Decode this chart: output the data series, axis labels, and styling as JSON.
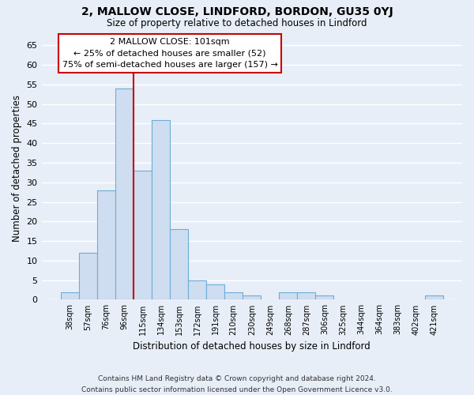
{
  "title": "2, MALLOW CLOSE, LINDFORD, BORDON, GU35 0YJ",
  "subtitle": "Size of property relative to detached houses in Lindford",
  "xlabel": "Distribution of detached houses by size in Lindford",
  "ylabel": "Number of detached properties",
  "bin_labels": [
    "38sqm",
    "57sqm",
    "76sqm",
    "96sqm",
    "115sqm",
    "134sqm",
    "153sqm",
    "172sqm",
    "191sqm",
    "210sqm",
    "230sqm",
    "249sqm",
    "268sqm",
    "287sqm",
    "306sqm",
    "325sqm",
    "344sqm",
    "364sqm",
    "383sqm",
    "402sqm",
    "421sqm"
  ],
  "bar_values": [
    2,
    12,
    28,
    54,
    33,
    46,
    18,
    5,
    4,
    2,
    1,
    0,
    2,
    2,
    1,
    0,
    0,
    0,
    0,
    0,
    1
  ],
  "bar_color": "#cfddf0",
  "bar_edge_color": "#6baed6",
  "vline_pos": 3.5,
  "vline_color": "#cc0000",
  "annotation_title": "2 MALLOW CLOSE: 101sqm",
  "annotation_line1": "← 25% of detached houses are smaller (52)",
  "annotation_line2": "75% of semi-detached houses are larger (157) →",
  "annotation_box_color": "#ffffff",
  "annotation_box_edge": "#cc0000",
  "ylim": [
    0,
    67
  ],
  "yticks": [
    0,
    5,
    10,
    15,
    20,
    25,
    30,
    35,
    40,
    45,
    50,
    55,
    60,
    65
  ],
  "footer1": "Contains HM Land Registry data © Crown copyright and database right 2024.",
  "footer2": "Contains public sector information licensed under the Open Government Licence v3.0.",
  "bg_color": "#e8eef8",
  "plot_bg_color": "#e8eef8",
  "grid_color": "#ffffff"
}
